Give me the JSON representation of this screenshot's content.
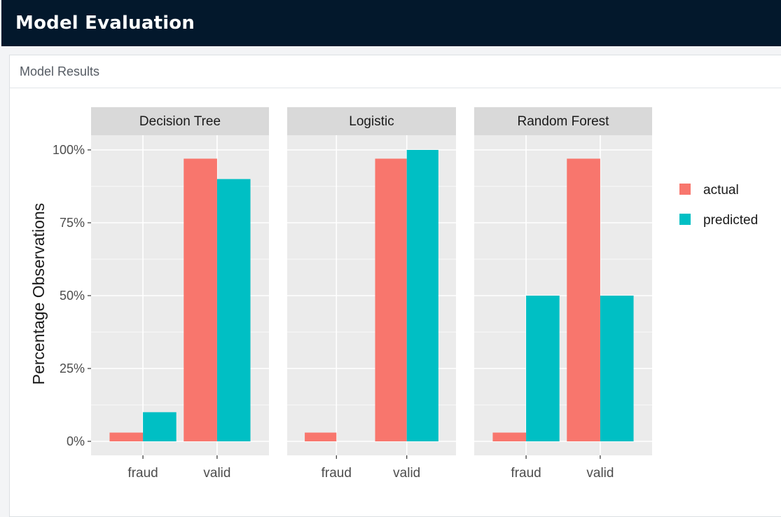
{
  "header": {
    "title": "Model Evaluation"
  },
  "panel": {
    "title": "Model Results"
  },
  "colors": {
    "actual": "#f8766d",
    "predicted": "#00bfc4",
    "panel_bg": "#ebebeb",
    "strip_bg": "#d9d9d9",
    "grid": "#ffffff"
  },
  "chart_data": {
    "type": "bar",
    "ylabel": "Percentage Observations",
    "xlabel": "",
    "ylim": [
      0,
      1.05
    ],
    "yticks": [
      0,
      0.25,
      0.5,
      0.75,
      1.0
    ],
    "ytick_labels": [
      "0%",
      "25%",
      "50%",
      "75%",
      "100%"
    ],
    "categories": [
      "fraud",
      "valid"
    ],
    "legend_position": "right",
    "legend": [
      {
        "name": "actual",
        "color": "#f8766d"
      },
      {
        "name": "predicted",
        "color": "#00bfc4"
      }
    ],
    "facets": [
      {
        "title": "Decision Tree",
        "series": [
          {
            "name": "actual",
            "values": [
              0.03,
              0.97
            ]
          },
          {
            "name": "predicted",
            "values": [
              0.1,
              0.9
            ]
          }
        ]
      },
      {
        "title": "Logistic",
        "series": [
          {
            "name": "actual",
            "values": [
              0.03,
              0.97
            ]
          },
          {
            "name": "predicted",
            "values": [
              0.0,
              1.0
            ]
          }
        ]
      },
      {
        "title": "Random Forest",
        "series": [
          {
            "name": "actual",
            "values": [
              0.03,
              0.97
            ]
          },
          {
            "name": "predicted",
            "values": [
              0.5,
              0.5
            ]
          }
        ]
      }
    ]
  }
}
